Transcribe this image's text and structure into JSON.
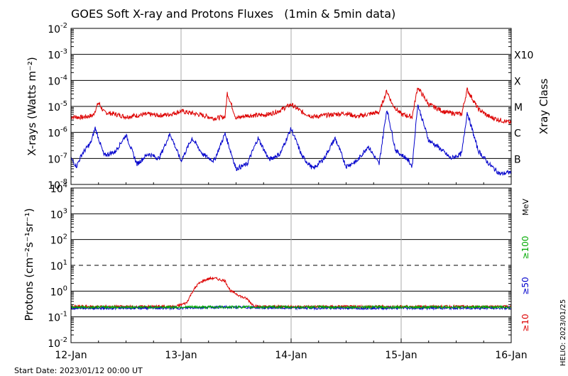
{
  "chart_data": [
    {
      "type": "line",
      "title": "GOES Soft X-ray and Protons Fluxes   (1min & 5min data)",
      "ylabel": "X-rays (Watts m⁻²)",
      "y_scale": "log",
      "ylim": [
        1e-08,
        0.01
      ],
      "xlim": [
        "2023-01-12",
        "2023-01-16"
      ],
      "grid": true,
      "y_ticks": [
        {
          "base": "10",
          "exp": "-8",
          "value": 1e-08
        },
        {
          "base": "10",
          "exp": "-7",
          "value": 1e-07
        },
        {
          "base": "10",
          "exp": "-6",
          "value": 1e-06
        },
        {
          "base": "10",
          "exp": "-5",
          "value": 1e-05
        },
        {
          "base": "10",
          "exp": "-4",
          "value": 0.0001
        },
        {
          "base": "10",
          "exp": "-3",
          "value": 0.001
        },
        {
          "base": "10",
          "exp": "-2",
          "value": 0.01
        }
      ],
      "right_axis": {
        "label": "Xray Class",
        "classes": [
          {
            "name": "B",
            "value": 1e-07
          },
          {
            "name": "C",
            "value": 1e-06
          },
          {
            "name": "M",
            "value": 1e-05
          },
          {
            "name": "X",
            "value": 0.0001
          },
          {
            "name": "X10",
            "value": 0.001
          }
        ]
      },
      "series": [
        {
          "color": "#dd0000",
          "x": [
            12.0,
            12.1,
            12.2,
            12.25,
            12.3,
            12.4,
            12.5,
            12.6,
            12.7,
            12.8,
            12.9,
            13.0,
            13.1,
            13.2,
            13.3,
            13.4,
            13.42,
            13.5,
            13.6,
            13.7,
            13.8,
            13.9,
            14.0,
            14.1,
            14.2,
            14.3,
            14.4,
            14.5,
            14.6,
            14.7,
            14.8,
            14.87,
            14.92,
            15.0,
            15.1,
            15.15,
            15.25,
            15.4,
            15.55,
            15.6,
            15.7,
            15.8,
            15.9,
            16.0
          ],
          "values": [
            4e-06,
            3.8e-06,
            4.5e-06,
            1.4e-05,
            6e-06,
            5e-06,
            4e-06,
            4.5e-06,
            5e-06,
            4.5e-06,
            5e-06,
            6.5e-06,
            5.5e-06,
            4.5e-06,
            3.5e-06,
            4e-06,
            3.3e-05,
            3.5e-06,
            4.5e-06,
            4.5e-06,
            5e-06,
            7e-06,
            1.2e-05,
            6e-06,
            4e-06,
            4.5e-06,
            5e-06,
            5.5e-06,
            4e-06,
            5e-06,
            6e-06,
            4e-05,
            1.2e-05,
            5e-06,
            4e-06,
            5.5e-05,
            1.2e-05,
            6e-06,
            5e-06,
            4.5e-05,
            8e-06,
            4e-06,
            3e-06,
            2.3e-06
          ]
        },
        {
          "color": "#0000cc",
          "x": [
            12.0,
            12.05,
            12.1,
            12.18,
            12.22,
            12.3,
            12.4,
            12.5,
            12.6,
            12.7,
            12.8,
            12.9,
            13.0,
            13.1,
            13.2,
            13.3,
            13.4,
            13.5,
            13.6,
            13.7,
            13.8,
            13.9,
            14.0,
            14.1,
            14.2,
            14.3,
            14.4,
            14.5,
            14.6,
            14.7,
            14.8,
            14.87,
            14.95,
            15.05,
            15.1,
            15.15,
            15.25,
            15.35,
            15.45,
            15.55,
            15.6,
            15.7,
            15.8,
            15.9,
            16.0
          ],
          "values": [
            1e-07,
            5e-08,
            1.5e-07,
            4e-07,
            1.5e-06,
            1.3e-07,
            1.8e-07,
            8e-07,
            6e-08,
            1.5e-07,
            1e-07,
            9e-07,
            8e-08,
            6e-07,
            1.4e-07,
            8e-08,
            9e-07,
            4e-08,
            6e-08,
            6e-07,
            9e-08,
            1.5e-07,
            1.4e-06,
            1.2e-07,
            4e-08,
            1e-07,
            6e-07,
            5e-08,
            8e-08,
            3e-07,
            6e-08,
            8e-06,
            2e-07,
            1e-07,
            5e-08,
            1.2e-05,
            5e-07,
            2.5e-07,
            1e-07,
            1.5e-07,
            6e-06,
            2e-07,
            6e-08,
            2.5e-08,
            3e-08
          ]
        }
      ]
    },
    {
      "type": "line",
      "ylabel": "Protons (cm⁻²s⁻¹sr⁻¹)",
      "y_scale": "log",
      "ylim": [
        0.01,
        10000
      ],
      "xlim": [
        "2023-01-12",
        "2023-01-16"
      ],
      "grid": true,
      "threshold": 10,
      "y_ticks": [
        {
          "base": "10",
          "exp": "-2",
          "value": 0.01
        },
        {
          "base": "10",
          "exp": "-1",
          "value": 0.1
        },
        {
          "base": "10",
          "exp": "0",
          "value": 1
        },
        {
          "base": "10",
          "exp": "1",
          "value": 10
        },
        {
          "base": "10",
          "exp": "2",
          "value": 100
        },
        {
          "base": "10",
          "exp": "3",
          "value": 1000
        },
        {
          "base": "10",
          "exp": "4",
          "value": 10000
        }
      ],
      "unit": "MeV",
      "series": [
        {
          "name": "≥10",
          "color": "#dd0000",
          "x": [
            12.0,
            12.5,
            12.95,
            13.05,
            13.1,
            13.15,
            13.2,
            13.25,
            13.3,
            13.35,
            13.4,
            13.45,
            13.5,
            13.55,
            13.6,
            13.65,
            13.7,
            14.0,
            14.5,
            15.0,
            15.5,
            16.0
          ],
          "values": [
            0.25,
            0.25,
            0.25,
            0.35,
            0.9,
            1.8,
            2.5,
            3.0,
            3.2,
            2.8,
            2.5,
            1.0,
            0.8,
            0.6,
            0.5,
            0.3,
            0.25,
            0.25,
            0.25,
            0.25,
            0.25,
            0.25
          ]
        },
        {
          "name": "≥50",
          "color": "#0000cc",
          "x": [
            12.0,
            13.0,
            13.3,
            14.0,
            15.0,
            16.0
          ],
          "values": [
            0.22,
            0.22,
            0.24,
            0.22,
            0.22,
            0.22
          ]
        },
        {
          "name": "≥100",
          "color": "#00aa00",
          "x": [
            12.0,
            13.0,
            14.0,
            15.0,
            16.0
          ],
          "values": [
            0.24,
            0.24,
            0.24,
            0.24,
            0.24
          ]
        }
      ]
    }
  ],
  "x_ticks": [
    "12-Jan",
    "13-Jan",
    "14-Jan",
    "15-Jan",
    "16-Jan"
  ],
  "footer": {
    "start_date": "Start Date: 2023/01/12 00:00 UT",
    "stamp": "HELIO: 2023/01/25"
  }
}
